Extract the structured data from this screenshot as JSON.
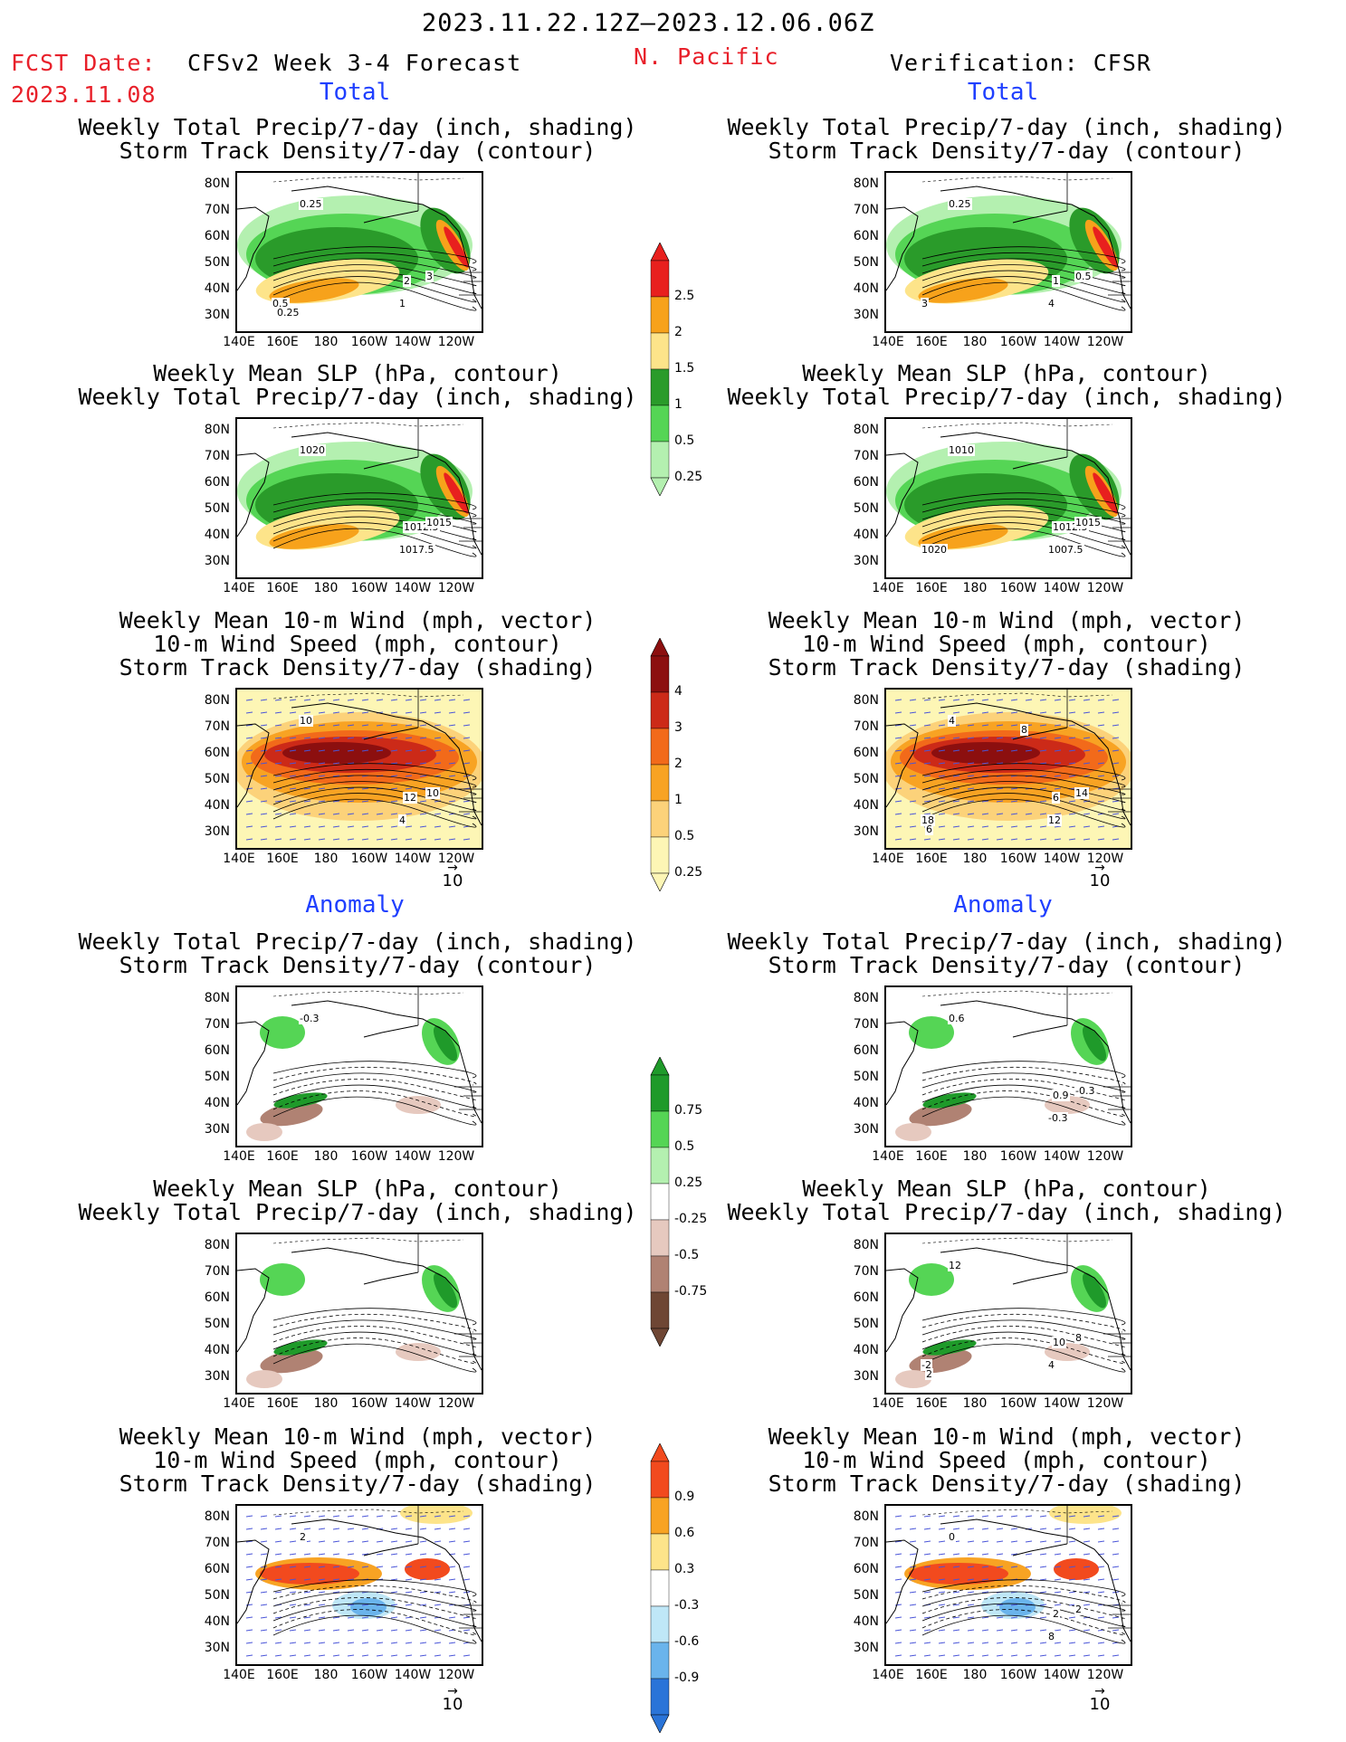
{
  "header": {
    "date_range": "2023.11.22.12Z–2023.12.06.06Z",
    "fcst_label": "FCST Date:",
    "fcst_date": "2023.11.08",
    "forecast_name": "CFSv2 Week 3-4 Forecast",
    "region": "N. Pacific",
    "verification": "Verification: CFSR"
  },
  "sections": {
    "total": "Total",
    "anomaly": "Anomaly"
  },
  "axes": {
    "y_ticks": [
      "80N",
      "70N",
      "60N",
      "50N",
      "40N",
      "30N"
    ],
    "x_ticks": [
      "140E",
      "160E",
      "180",
      "160W",
      "140W",
      "120W"
    ]
  },
  "vector_ref": "10",
  "panel_titles": {
    "precip_storm": [
      "Weekly Total Precip/7-day (inch, shading)",
      "Storm Track Density/7-day (contour)"
    ],
    "slp_precip": [
      "Weekly Mean SLP (hPa, contour)",
      "Weekly Total Precip/7-day (inch, shading)"
    ],
    "wind_storm": [
      "Weekly Mean 10-m Wind (mph, vector)",
      "10-m Wind Speed (mph, contour)",
      "Storm Track Density/7-day (shading)"
    ]
  },
  "colorbars": {
    "precip_total": {
      "labels": [
        "2.5",
        "2",
        "1.5",
        "1",
        "0.5",
        "0.25"
      ],
      "colors": [
        "#e8201e",
        "#f7a21b",
        "#fde48a",
        "#2a9b2a",
        "#55d555",
        "#b4f0b0"
      ]
    },
    "storm_total": {
      "labels": [
        "4",
        "3",
        "2",
        "1",
        "0.5",
        "0.25"
      ],
      "colors": [
        "#8c0f0f",
        "#cc2a18",
        "#f26a1a",
        "#f8a323",
        "#fcd27a",
        "#fdf6b5"
      ]
    },
    "precip_anom": {
      "labels": [
        "0.75",
        "0.5",
        "0.25",
        "-0.25",
        "-0.5",
        "-0.75"
      ],
      "colors": [
        "#1f9a2a",
        "#55d555",
        "#b4f0b0",
        "#ffffff",
        "#e6c9bf",
        "#b08273",
        "#6e4634"
      ]
    },
    "storm_anom": {
      "labels": [
        "0.9",
        "0.6",
        "0.3",
        "-0.3",
        "-0.6",
        "-0.9"
      ],
      "colors": [
        "#f24a1e",
        "#f8a323",
        "#fde48a",
        "#ffffff",
        "#bfe7f7",
        "#6ab4ec",
        "#2a74d8"
      ]
    }
  },
  "panel_annotations": {
    "fl1": [
      "0.25",
      "2",
      "3",
      "1",
      "0.5",
      "0.25"
    ],
    "fl2": [
      "1020",
      "1012.5",
      "1015",
      "1017.5"
    ],
    "fl3": [
      "10",
      "12",
      "10",
      "4"
    ],
    "fl4": [
      "-0.3"
    ],
    "fr1": [
      "0.25",
      "1",
      "0.5",
      "4",
      "3"
    ],
    "fr2": [
      "1010",
      "1012.5",
      "1015",
      "1007.5",
      "1020"
    ],
    "fr3": [
      "4",
      "6",
      "14",
      "12",
      "18",
      "6",
      "8"
    ],
    "fr4": [
      "0.6",
      "0.9",
      "-0.3",
      "-0.3"
    ],
    "fr5": [
      "12",
      "10",
      "8",
      "4",
      "-2",
      "2"
    ],
    "fr6": [
      "0",
      "2",
      "2",
      "8"
    ],
    "fl6": [
      "2"
    ]
  }
}
